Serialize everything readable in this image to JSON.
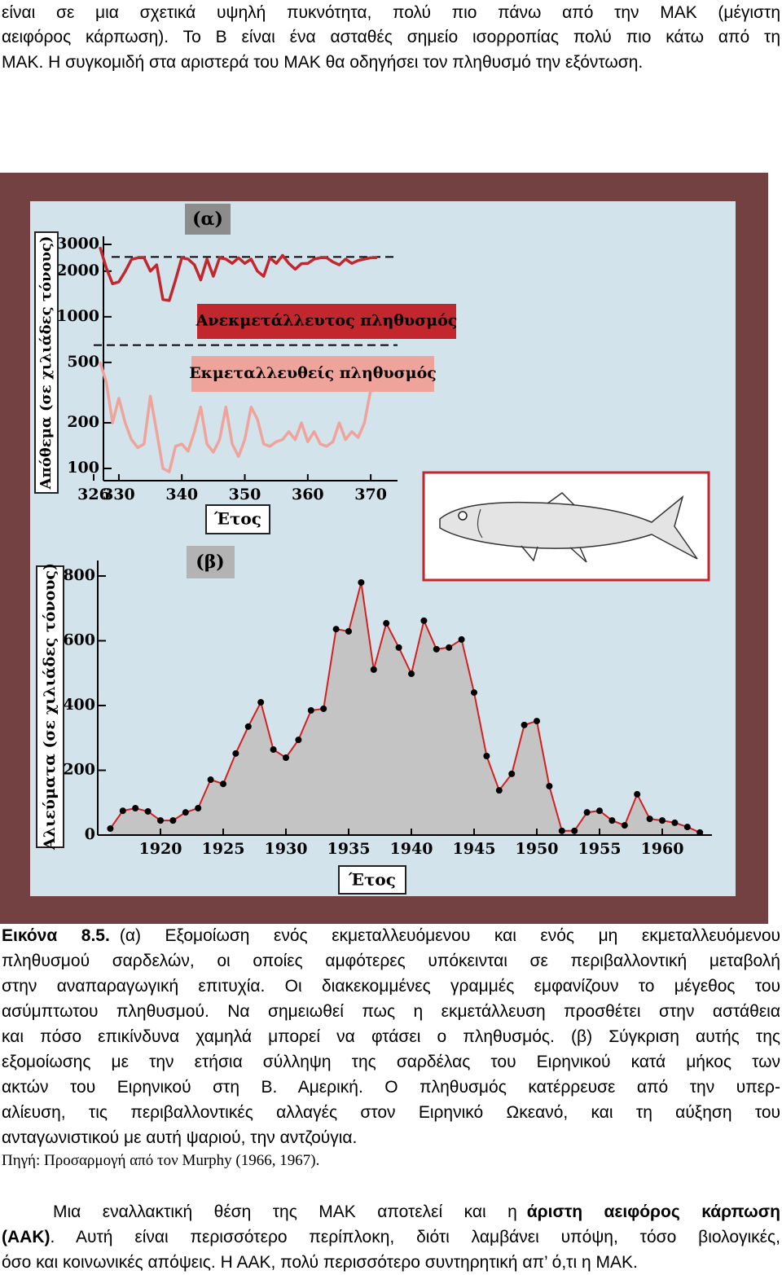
{
  "paragraph_top": {
    "lines": [
      "είναι σε μια σχετικά υψηλή πυκνότητα, πολύ πιο πάνω από την ΜΑΚ (μέγιστη",
      "αειφόρος κάρπωση). Το Β είναι ένα ασταθές σημείο ισορροπίας πολύ πιο κάτω από τη",
      "ΜΑΚ. Η συγκομιδή στα αριστερά του ΜΑΚ θα οδηγήσει τον πληθυσμό την εξόντωση."
    ]
  },
  "figure": {
    "panel_a": {
      "type": "line",
      "label": "(α)",
      "y_label": "Απόθεμα (σε χιλιάδες τόνους)",
      "x_label": "Έτος",
      "log_y": true,
      "xlim": [
        326,
        374
      ],
      "ylim": [
        100,
        3000
      ],
      "xticks": [
        326,
        330,
        340,
        350,
        360,
        370
      ],
      "yticks": [
        100,
        200,
        500,
        1000,
        2000,
        3000
      ],
      "dashed_lines": [
        2480,
        650
      ],
      "series": [
        {
          "name": "Ανεκμετάλλευτος πληθυσμός",
          "color": "#c1272d",
          "x": [
            327,
            328,
            329,
            330,
            331,
            332,
            333,
            334,
            335,
            336,
            337,
            338,
            339,
            340,
            341,
            342,
            343,
            344,
            345,
            346,
            347,
            348,
            349,
            350,
            351,
            352,
            353,
            354,
            355,
            356,
            357,
            358,
            359,
            360,
            361,
            362,
            363,
            364,
            365,
            366,
            367,
            368,
            369,
            370,
            371
          ],
          "values": [
            2880,
            2100,
            1650,
            1700,
            1990,
            2390,
            2450,
            2450,
            2000,
            2200,
            1300,
            1280,
            1750,
            2450,
            2400,
            2200,
            1750,
            2400,
            1850,
            2450,
            2400,
            2250,
            2450,
            2250,
            2400,
            2000,
            1850,
            2450,
            2250,
            2540,
            2250,
            2060,
            2240,
            2250,
            2400,
            2450,
            2450,
            2300,
            2200,
            2400,
            2250,
            2350,
            2400,
            2450,
            2450
          ]
        },
        {
          "name": "Εκμεταλλευθείς πληθυσμός",
          "color": "#eea49b",
          "x": [
            327,
            328,
            329,
            330,
            331,
            332,
            333,
            334,
            335,
            336,
            337,
            338,
            339,
            340,
            341,
            342,
            343,
            344,
            345,
            346,
            347,
            348,
            349,
            350,
            351,
            352,
            353,
            354,
            355,
            356,
            357,
            358,
            359,
            360,
            361,
            362,
            363,
            364,
            365,
            366,
            367,
            368,
            369,
            370
          ],
          "values": [
            505,
            370,
            200,
            290,
            200,
            155,
            137,
            145,
            300,
            175,
            100,
            95,
            140,
            145,
            130,
            175,
            254,
            145,
            128,
            155,
            254,
            145,
            120,
            155,
            254,
            211,
            145,
            140,
            150,
            155,
            175,
            155,
            200,
            150,
            175,
            145,
            140,
            150,
            200,
            155,
            175,
            160,
            200,
            330
          ]
        }
      ]
    },
    "panel_b": {
      "type": "area",
      "label": "(β)",
      "y_label": "Αλιεύματα (σε χιλιάδες τόνους)",
      "x_label": "Έτος",
      "xlim": [
        1915,
        1964
      ],
      "ylim": [
        0,
        800
      ],
      "xticks": [
        1920,
        1925,
        1930,
        1935,
        1940,
        1945,
        1950,
        1955,
        1960
      ],
      "yticks": [
        0,
        200,
        400,
        600,
        800
      ],
      "line_color": "#d42020",
      "fill_color": "#c4c4c4",
      "x": [
        1916,
        1917,
        1918,
        1919,
        1920,
        1921,
        1922,
        1923,
        1924,
        1925,
        1926,
        1927,
        1928,
        1929,
        1930,
        1931,
        1932,
        1933,
        1934,
        1935,
        1936,
        1937,
        1938,
        1939,
        1940,
        1941,
        1942,
        1943,
        1944,
        1945,
        1946,
        1947,
        1948,
        1949,
        1950,
        1951,
        1952,
        1953,
        1954,
        1955,
        1956,
        1957,
        1958,
        1959,
        1960,
        1961,
        1962,
        1963
      ],
      "values": [
        20,
        75,
        83,
        73,
        45,
        45,
        70,
        83,
        171,
        158,
        252,
        335,
        410,
        264,
        239,
        294,
        385,
        390,
        636,
        629,
        780,
        511,
        654,
        579,
        498,
        662,
        574,
        579,
        604,
        440,
        244,
        138,
        189,
        340,
        352,
        151,
        13,
        13,
        70,
        75,
        45,
        30,
        126,
        50,
        45,
        38,
        25,
        8
      ]
    }
  },
  "caption": {
    "label": "Εικόνα 8.5.",
    "lines": [
      "(α) Εξομοίωση ενός εκμεταλλευόμενου και ενός μη εκμεταλλευόμενου",
      "πληθυσμού σαρδελών, οι οποίες αμφότερες υπόκεινται σε περιβαλλοντική μεταβολή",
      "στην αναπαραγωγική επιτυχία. Οι διακεκομμένες γραμμές εμφανίζουν το μέγεθος του",
      "ασύμπτωτου πληθυσμού. Να σημειωθεί πως η εκμετάλλευση προσθέτει στην αστάθεια",
      "και πόσο επικίνδυνα χαμηλά μπορεί να φτάσει ο πληθυσμός. (β) Σύγκριση αυτής της",
      "εξομοίωσης με την ετήσια σύλληψη της σαρδέλας του Ειρηνικού κατά μήκος των",
      "ακτών του Ειρηνικού στη Β. Αμερική. Ο πληθυσμός κατέρρευσε από την υπερ-",
      "αλίευση, τις περιβαλλοντικές αλλαγές στον Ειρηνικό Ωκεανό, και τη αύξηση του",
      "ανταγωνιστικού με αυτή ψαριού, την αντζούγια."
    ]
  },
  "source": "Πηγή: Προσαρμογή από τον Murphy (1966, 1967).",
  "paragraph_bottom": {
    "lines": [
      [
        "Μια εναλλακτική θέση της ΜΑΚ αποτελεί και η",
        "άριστη αειφόρος κάρπωση"
      ],
      [
        "(ΑΑΚ)",
        ". Αυτή είναι περισσότερο περίπλοκη, διότι λαμβάνει υπόψη, τόσο βιολογικές,"
      ],
      [
        "όσο και κοινωνικές απόψεις. Η ΑΑΚ, πολύ περισσότερο συντηρητική απ’ ό,τι η ΜΑΚ."
      ]
    ]
  }
}
